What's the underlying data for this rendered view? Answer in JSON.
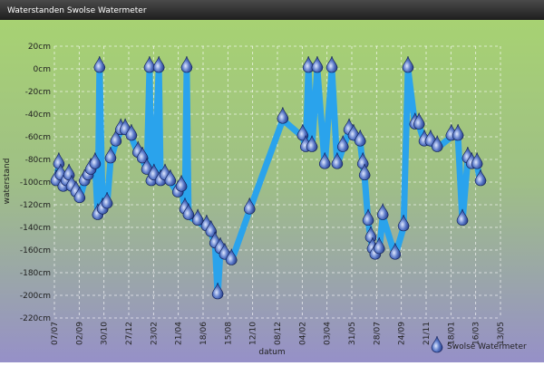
{
  "chart_data": {
    "type": "line",
    "title": "Waterstanden Swolse Watermeter",
    "x_label": "datum",
    "y_label": "waterstand",
    "xlim": [
      0,
      1008
    ],
    "xticks": [
      {
        "value": 0,
        "label": "07/07"
      },
      {
        "value": 56,
        "label": "02/09"
      },
      {
        "value": 112,
        "label": "30/10"
      },
      {
        "value": 168,
        "label": "27/12"
      },
      {
        "value": 224,
        "label": "23/02"
      },
      {
        "value": 280,
        "label": "21/04"
      },
      {
        "value": 336,
        "label": "18/06"
      },
      {
        "value": 392,
        "label": "15/08"
      },
      {
        "value": 448,
        "label": "12/10"
      },
      {
        "value": 504,
        "label": "08/12"
      },
      {
        "value": 560,
        "label": "04/02"
      },
      {
        "value": 616,
        "label": "03/04"
      },
      {
        "value": 672,
        "label": "31/05"
      },
      {
        "value": 728,
        "label": "28/07"
      },
      {
        "value": 784,
        "label": "24/09"
      },
      {
        "value": 840,
        "label": "21/11"
      },
      {
        "value": 896,
        "label": "18/01"
      },
      {
        "value": 952,
        "label": "16/03"
      },
      {
        "value": 1008,
        "label": "13/05"
      }
    ],
    "ylim": [
      -220,
      20
    ],
    "yticks": [
      {
        "value": 20,
        "label": "20cm"
      },
      {
        "value": 0,
        "label": "0cm"
      },
      {
        "value": -20,
        "label": "-20cm"
      },
      {
        "value": -40,
        "label": "-40cm"
      },
      {
        "value": -60,
        "label": "-60cm"
      },
      {
        "value": -80,
        "label": "-80cm"
      },
      {
        "value": -100,
        "label": "-100cm"
      },
      {
        "value": -120,
        "label": "-120cm"
      },
      {
        "value": -140,
        "label": "-140cm"
      },
      {
        "value": -160,
        "label": "-160cm"
      },
      {
        "value": -180,
        "label": "-180cm"
      },
      {
        "value": -200,
        "label": "-200cm"
      },
      {
        "value": -220,
        "label": "-220cm"
      }
    ],
    "grid": true,
    "legend": "bottom-right",
    "series": [
      {
        "name": "Swolse Watermeter",
        "color": "#2aa3ec",
        "x": [
          4,
          10,
          14,
          20,
          27,
          33,
          39,
          49,
          57,
          68,
          76,
          82,
          92,
          98,
          102,
          109,
          119,
          127,
          139,
          150,
          160,
          174,
          189,
          199,
          209,
          215,
          219,
          225,
          236,
          240,
          250,
          262,
          279,
          287,
          295,
          299,
          303,
          324,
          344,
          354,
          363,
          369,
          375,
          385,
          400,
          441,
          516,
          561,
          568,
          574,
          582,
          594,
          611,
          627,
          639,
          652,
          666,
          676,
          691,
          697,
          701,
          709,
          715,
          719,
          725,
          734,
          742,
          770,
          789,
          799,
          815,
          824,
          836,
          850,
          865,
          897,
          912,
          922,
          934,
          943,
          955,
          963
        ],
        "values": [
          -100,
          -85,
          -95,
          -105,
          -100,
          -95,
          -105,
          -110,
          -115,
          -100,
          -95,
          -90,
          -85,
          -130,
          0,
          -125,
          -120,
          -80,
          -65,
          -55,
          -55,
          -60,
          -75,
          -80,
          -90,
          0,
          -100,
          -95,
          0,
          -100,
          -95,
          -100,
          -110,
          -105,
          -125,
          0,
          -130,
          -135,
          -140,
          -145,
          -155,
          -200,
          -160,
          -165,
          -170,
          -125,
          -45,
          -60,
          -70,
          0,
          -70,
          0,
          -85,
          0,
          -85,
          -70,
          -55,
          -60,
          -65,
          -85,
          -95,
          -135,
          -150,
          -160,
          -165,
          -160,
          -130,
          -165,
          -140,
          0,
          -50,
          -50,
          -65,
          -65,
          -70,
          -60,
          -60,
          -135,
          -80,
          -85,
          -85,
          -100
        ]
      }
    ]
  }
}
